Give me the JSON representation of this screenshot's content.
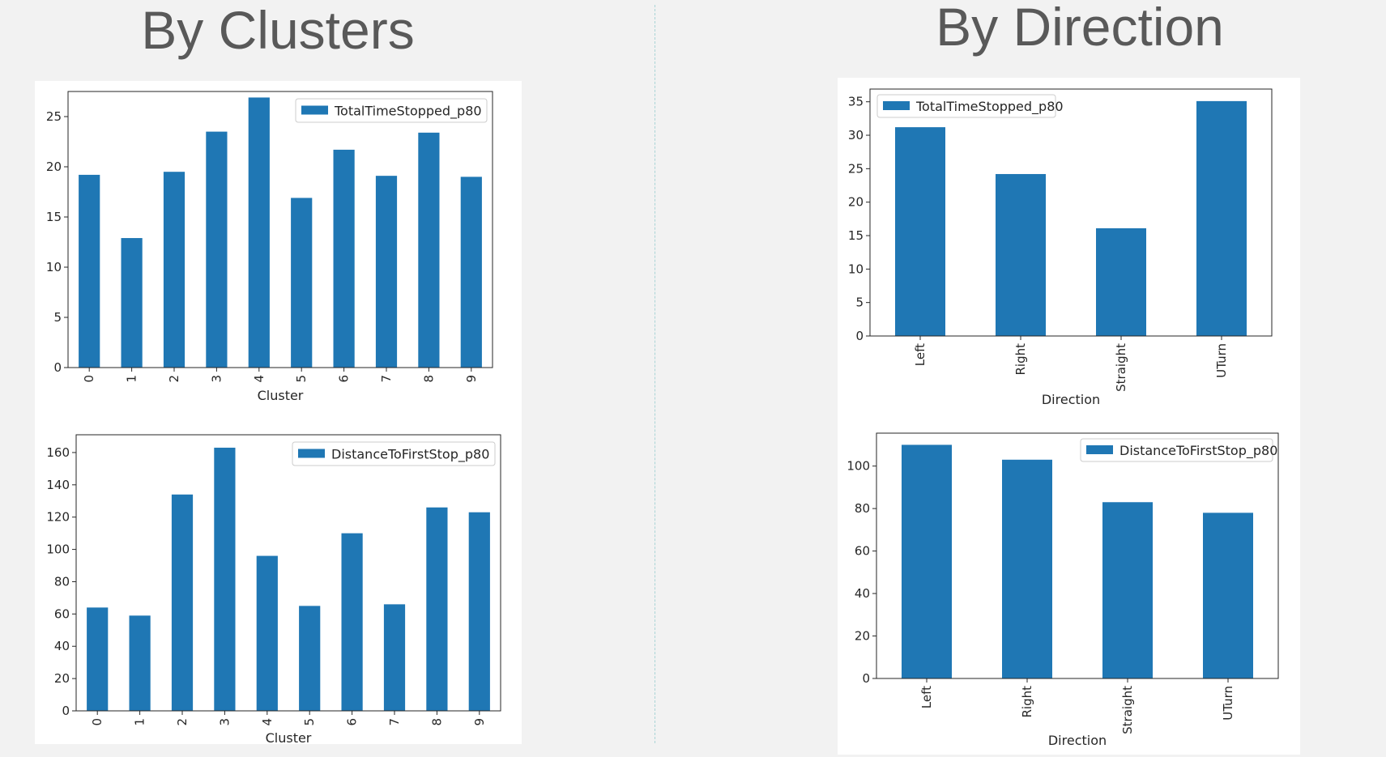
{
  "titles": {
    "left": "By Clusters",
    "right": "By Direction"
  },
  "colors": {
    "bar": "#1f77b4",
    "background": "#f2f2f2",
    "title": "#595959"
  },
  "chart_data": [
    {
      "type": "bar",
      "title": "",
      "xlabel": "Cluster",
      "ylabel": "",
      "categories": [
        "0",
        "1",
        "2",
        "3",
        "4",
        "5",
        "6",
        "7",
        "8",
        "9"
      ],
      "series": [
        {
          "name": "TotalTimeStopped_p80",
          "values": [
            19.2,
            12.9,
            19.5,
            23.5,
            26.9,
            16.9,
            21.7,
            19.1,
            23.4,
            19.0
          ]
        }
      ],
      "ylim": [
        0,
        27.5
      ],
      "yticks": [
        0,
        5,
        10,
        15,
        20,
        25
      ],
      "legend": "top-right",
      "x_tick_rotation": 90,
      "grid": false
    },
    {
      "type": "bar",
      "title": "",
      "xlabel": "Cluster",
      "ylabel": "",
      "categories": [
        "0",
        "1",
        "2",
        "3",
        "4",
        "5",
        "6",
        "7",
        "8",
        "9"
      ],
      "series": [
        {
          "name": "DistanceToFirstStop_p80",
          "values": [
            64,
            59,
            134,
            163,
            96,
            65,
            110,
            66,
            126,
            123
          ]
        }
      ],
      "ylim": [
        0,
        171
      ],
      "yticks": [
        0,
        20,
        40,
        60,
        80,
        100,
        120,
        140,
        160
      ],
      "legend": "top-right",
      "x_tick_rotation": 90,
      "grid": false
    },
    {
      "type": "bar",
      "title": "",
      "xlabel": "Direction",
      "ylabel": "",
      "categories": [
        "Left",
        "Right",
        "Straight",
        "UTurn"
      ],
      "series": [
        {
          "name": "TotalTimeStopped_p80",
          "values": [
            31.2,
            24.2,
            16.1,
            35.1
          ]
        }
      ],
      "ylim": [
        0,
        36.9
      ],
      "yticks": [
        0,
        5,
        10,
        15,
        20,
        25,
        30,
        35
      ],
      "legend": "top-left",
      "x_tick_rotation": 90,
      "grid": false
    },
    {
      "type": "bar",
      "title": "",
      "xlabel": "Direction",
      "ylabel": "",
      "categories": [
        "Left",
        "Right",
        "Straight",
        "UTurn"
      ],
      "series": [
        {
          "name": "DistanceToFirstStop_p80",
          "values": [
            110,
            103,
            83,
            78
          ]
        }
      ],
      "ylim": [
        0,
        115.5
      ],
      "yticks": [
        0,
        20,
        40,
        60,
        80,
        100
      ],
      "legend": "top-right",
      "x_tick_rotation": 90,
      "grid": false
    }
  ]
}
